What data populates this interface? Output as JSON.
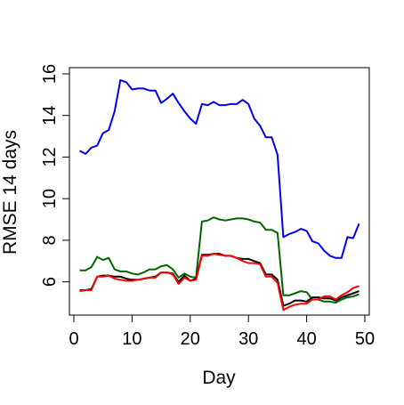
{
  "chart_data": {
    "type": "line",
    "title": "",
    "xlabel": "Day",
    "ylabel": "RMSE 14 days",
    "xlim": [
      0,
      50
    ],
    "ylim": [
      4.4,
      16.3
    ],
    "x_ticks": [
      0,
      10,
      20,
      30,
      40,
      50
    ],
    "y_ticks": [
      6,
      8,
      10,
      12,
      14,
      16
    ],
    "grid": false,
    "legend": "none",
    "x": [
      1,
      2,
      3,
      4,
      5,
      6,
      7,
      8,
      9,
      10,
      11,
      12,
      13,
      14,
      15,
      16,
      17,
      18,
      19,
      20,
      21,
      22,
      23,
      24,
      25,
      26,
      27,
      28,
      29,
      30,
      31,
      32,
      33,
      34,
      35,
      36,
      37,
      38,
      39,
      40,
      41,
      42,
      43,
      44,
      45,
      46,
      47,
      48,
      49
    ],
    "series": [
      {
        "color": "#0000ee",
        "values": [
          12.3,
          12.15,
          12.45,
          12.55,
          13.15,
          13.3,
          14.2,
          15.7,
          15.6,
          15.25,
          15.3,
          15.3,
          15.2,
          15.2,
          14.6,
          14.8,
          15.05,
          14.6,
          14.2,
          13.85,
          13.6,
          14.55,
          14.5,
          14.65,
          14.5,
          14.5,
          14.55,
          14.55,
          14.75,
          14.55,
          13.85,
          13.5,
          12.95,
          12.95,
          12.1,
          8.15,
          8.3,
          8.4,
          8.55,
          8.45,
          7.95,
          7.85,
          7.5,
          7.25,
          7.15,
          7.15,
          8.15,
          8.1,
          8.8
        ]
      },
      {
        "color": "#006400",
        "values": [
          6.55,
          6.55,
          6.7,
          7.2,
          7.05,
          7.15,
          6.6,
          6.5,
          6.5,
          6.4,
          6.35,
          6.45,
          6.6,
          6.6,
          6.75,
          6.8,
          6.6,
          6.2,
          6.4,
          6.25,
          6.2,
          8.9,
          8.95,
          9.1,
          9.0,
          8.95,
          9.0,
          9.05,
          9.05,
          9.0,
          8.9,
          8.85,
          8.5,
          8.5,
          8.35,
          5.35,
          5.35,
          5.45,
          5.55,
          5.5,
          5.15,
          5.15,
          5.05,
          5.05,
          5.0,
          5.15,
          5.25,
          5.3,
          5.4
        ]
      },
      {
        "color": "#000000",
        "values": [
          5.6,
          5.6,
          5.65,
          6.25,
          6.3,
          6.3,
          6.25,
          6.25,
          6.15,
          6.1,
          6.1,
          6.15,
          6.2,
          6.25,
          6.45,
          6.45,
          6.4,
          6.0,
          6.3,
          6.05,
          6.15,
          7.3,
          7.3,
          7.35,
          7.35,
          7.25,
          7.25,
          7.15,
          7.1,
          7.1,
          7.0,
          6.9,
          6.35,
          6.35,
          6.1,
          4.85,
          4.95,
          5.1,
          5.1,
          5.05,
          5.25,
          5.25,
          5.2,
          5.2,
          5.1,
          5.25,
          5.35,
          5.45,
          5.55
        ]
      },
      {
        "color": "#ff0000",
        "values": [
          5.55,
          5.6,
          5.6,
          6.25,
          6.25,
          6.3,
          6.15,
          6.1,
          6.05,
          6.05,
          6.1,
          6.15,
          6.2,
          6.2,
          6.45,
          6.45,
          6.35,
          5.9,
          6.2,
          6.05,
          6.1,
          7.25,
          7.25,
          7.35,
          7.3,
          7.25,
          7.25,
          7.15,
          7.0,
          6.9,
          6.9,
          6.85,
          6.25,
          6.25,
          5.95,
          4.65,
          4.8,
          4.9,
          4.95,
          4.95,
          5.15,
          5.15,
          5.3,
          5.3,
          5.15,
          5.35,
          5.5,
          5.7,
          5.8
        ]
      }
    ]
  }
}
